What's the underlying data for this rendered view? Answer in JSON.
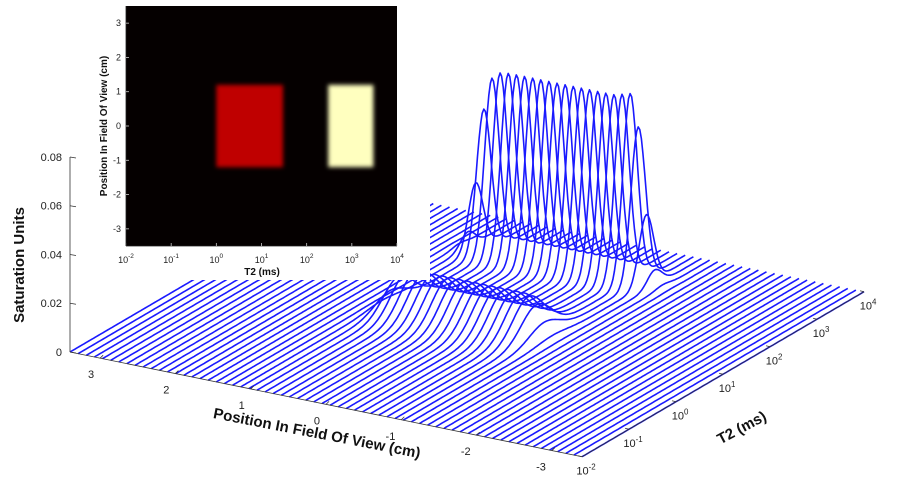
{
  "chart_data": [
    {
      "type": "line",
      "view": "3d-waterfall",
      "x_axis": {
        "label": "T2 (ms)",
        "scale": "log",
        "range": [
          0.01,
          10000
        ],
        "ticks": [
          "10-2",
          "10-1",
          "100",
          "101",
          "102",
          "103",
          "104"
        ]
      },
      "y_axis": {
        "label": "Position In Field Of View (cm)",
        "range": [
          -3.4,
          3.4
        ],
        "ticks": [
          "3",
          "2",
          "1",
          "0",
          "-1",
          "-2",
          "-3"
        ]
      },
      "z_axis": {
        "label": "Saturation Units",
        "range": [
          0,
          0.08
        ],
        "ticks": [
          "0",
          "0.02",
          "0.04",
          "0.06",
          "0.08"
        ]
      },
      "series_color": "#1a1aff",
      "slice_count": 64,
      "components": [
        {
          "t2_center_ms": 1000,
          "log_width": 0.22,
          "peak": 0.075,
          "position_range_cm": [
            -1.1,
            1.1
          ],
          "note": "long T2 plateau"
        },
        {
          "t2_center_ms": 10,
          "log_width": 0.45,
          "peak": 0.016,
          "position_range_cm": [
            -1.0,
            1.0
          ],
          "note": "short T2 broad hump"
        }
      ],
      "grid": false
    },
    {
      "type": "heatmap",
      "colormap": "hot",
      "x_axis": {
        "label": "T2 (ms)",
        "scale": "log",
        "range": [
          0.01,
          10000
        ],
        "ticks": [
          "10-2",
          "10-1",
          "100",
          "101",
          "102",
          "103",
          "104"
        ]
      },
      "y_axis": {
        "label": "Position In Field Of View (cm)",
        "range": [
          -3.5,
          3.5
        ],
        "ticks": [
          "3",
          "2",
          "1",
          "0",
          "-1",
          "-2",
          "-3"
        ]
      },
      "regions": [
        {
          "t2_range_ms": [
            1,
            30
          ],
          "position_range_cm": [
            -1.2,
            1.2
          ],
          "intensity": 0.3
        },
        {
          "t2_range_ms": [
            300,
            3000
          ],
          "position_range_cm": [
            -1.2,
            1.2
          ],
          "intensity": 0.95
        }
      ]
    }
  ]
}
